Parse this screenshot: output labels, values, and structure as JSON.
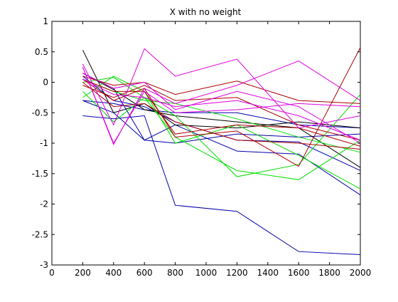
{
  "chart_data": {
    "type": "line",
    "title": "X with no weight",
    "xlabel": "",
    "ylabel": "",
    "xlim": [
      0,
      2000
    ],
    "ylim": [
      -3,
      1
    ],
    "grid": false,
    "legend": "none",
    "x_ticks": [
      0,
      200,
      400,
      600,
      800,
      1000,
      1200,
      1400,
      1600,
      1800,
      2000
    ],
    "y_ticks": [
      1,
      0.5,
      0,
      -0.5,
      -1,
      -1.5,
      -2,
      -2.5,
      -3
    ],
    "x_tick_labels": [
      "0",
      "200",
      "400",
      "600",
      "800",
      "1000",
      "1200",
      "1400",
      "1600",
      "1800",
      "2000"
    ],
    "y_tick_labels": [
      "1",
      "0.5",
      "0",
      "-0.5",
      "-1",
      "-1.5",
      "-2",
      "-2.5",
      "-3"
    ],
    "x": [
      200,
      400,
      600,
      800,
      1200,
      1600,
      2000
    ],
    "series": [
      {
        "color": "#0000aa",
        "values": [
          -0.55,
          -0.6,
          -0.55,
          -2.02,
          -2.12,
          -2.78,
          -2.83
        ]
      },
      {
        "color": "#0000aa",
        "values": [
          0.15,
          -0.1,
          -0.95,
          -0.7,
          -1.13,
          -1.18,
          -1.85
        ]
      },
      {
        "color": "#0000aa",
        "values": [
          -0.3,
          -0.5,
          -0.95,
          -1.0,
          -0.85,
          -0.9,
          -0.85
        ]
      },
      {
        "color": "#0000aa",
        "values": [
          0.1,
          -0.3,
          -0.4,
          -0.65,
          -0.95,
          -0.98,
          -1.45
        ]
      },
      {
        "color": "#0000aa",
        "values": [
          -0.3,
          -0.35,
          -0.45,
          -0.5,
          -0.5,
          -0.7,
          -0.75
        ]
      },
      {
        "color": "#000000",
        "values": [
          0.53,
          -0.5,
          -0.35,
          -0.7,
          -0.75,
          -0.65,
          -0.75
        ]
      },
      {
        "color": "#000000",
        "values": [
          0.15,
          -0.12,
          -0.45,
          -0.55,
          -0.65,
          -0.75,
          -1.4
        ]
      },
      {
        "color": "#00dd00",
        "values": [
          0.0,
          0.08,
          -0.25,
          -0.55,
          -1.55,
          -1.35,
          -0.2
        ]
      },
      {
        "color": "#00dd00",
        "values": [
          -0.15,
          -0.65,
          -0.25,
          -0.9,
          -1.45,
          -1.6,
          -0.95
        ]
      },
      {
        "color": "#00dd00",
        "values": [
          -0.25,
          0.1,
          -0.15,
          -1.0,
          -0.7,
          -1.2,
          -1.75
        ]
      },
      {
        "color": "#00dd00",
        "values": [
          0.05,
          -0.15,
          -0.3,
          -0.35,
          -0.6,
          -0.9,
          -1.15
        ]
      },
      {
        "color": "#aa0000",
        "values": [
          0.05,
          -0.3,
          -0.1,
          -0.9,
          -0.8,
          -1.38,
          0.57
        ]
      },
      {
        "color": "#aa0000",
        "values": [
          0.1,
          -0.05,
          0.0,
          -0.2,
          0.02,
          -0.3,
          -0.35
        ]
      },
      {
        "color": "#aa0000",
        "values": [
          0.0,
          -0.4,
          -0.35,
          -0.65,
          -0.95,
          -1.0,
          -1.1
        ]
      },
      {
        "color": "#aa0000",
        "values": [
          -0.05,
          -0.25,
          -0.05,
          -0.3,
          -0.25,
          -0.7,
          -0.95
        ]
      },
      {
        "color": "#aa0000",
        "values": [
          0.05,
          -0.15,
          -0.15,
          -0.85,
          -0.7,
          -0.75,
          -1.05
        ]
      },
      {
        "color": "#dd00dd",
        "values": [
          0.3,
          -0.7,
          0.55,
          0.1,
          0.38,
          -0.75,
          -0.55
        ]
      },
      {
        "color": "#dd00dd",
        "values": [
          0.25,
          -1.02,
          -0.1,
          -0.35,
          -0.05,
          0.35,
          -0.3
        ]
      },
      {
        "color": "#dd00dd",
        "values": [
          0.25,
          -1.0,
          -0.15,
          -0.5,
          -0.45,
          -0.35,
          -0.4
        ]
      },
      {
        "color": "#dd00dd",
        "values": [
          0.15,
          -0.1,
          0.0,
          -0.45,
          -0.15,
          -0.4,
          -1.0
        ]
      },
      {
        "color": "#dd00dd",
        "values": [
          0.05,
          -0.2,
          -0.25,
          -0.4,
          -0.3,
          -0.55,
          -0.95
        ]
      }
    ]
  }
}
